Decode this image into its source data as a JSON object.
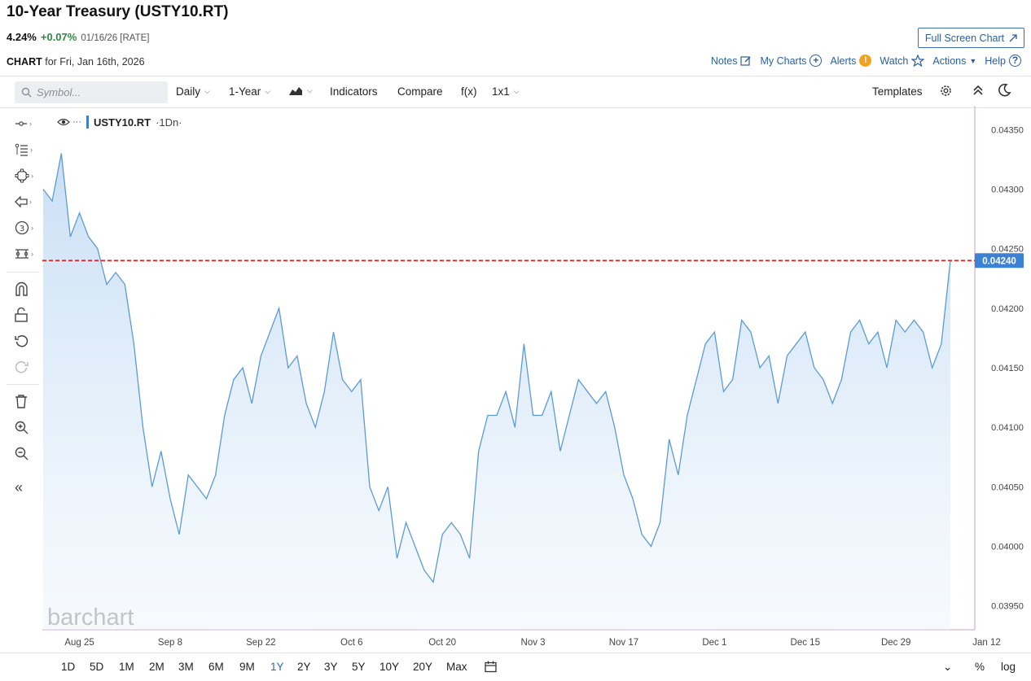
{
  "header": {
    "title": "10-Year Treasury (USTY10.RT)",
    "last": "4.24%",
    "change": "+0.07%",
    "meta": "01/16/26 [RATE]",
    "chart_label": "CHART",
    "chart_for": "for Fri, Jan 16th, 2026",
    "full_screen": "Full Screen Chart",
    "links": {
      "notes": "Notes",
      "my_charts": "My Charts",
      "alerts": "Alerts",
      "watch": "Watch",
      "actions": "Actions",
      "help": "Help"
    }
  },
  "toolbar": {
    "search_placeholder": "Symbol...",
    "interval": "Daily",
    "range": "1-Year",
    "indicators": "Indicators",
    "compare": "Compare",
    "fx": "f(x)",
    "layout": "1x1",
    "templates": "Templates"
  },
  "symbol_bar": {
    "symbol": "USTY10.RT",
    "period": "·1Dn·"
  },
  "price_label": "0.04240",
  "watermark": "barchart",
  "periods": [
    "1D",
    "5D",
    "1M",
    "2M",
    "3M",
    "6M",
    "9M",
    "1Y",
    "2Y",
    "3Y",
    "5Y",
    "10Y",
    "20Y",
    "Max"
  ],
  "active_period": "1Y",
  "bottom_right": {
    "percent": "%",
    "log": "log"
  },
  "colors": {
    "line": "#5b9bd5",
    "fill_top": "#cfe2f6",
    "price_line": "#d62728",
    "price_tag": "#3b82d6",
    "active": "#2b6cb8"
  },
  "chart_data": {
    "type": "area",
    "y_ticks": [
      "0.04350",
      "0.04300",
      "0.04250",
      "0.04200",
      "0.04150",
      "0.04100",
      "0.04050",
      "0.04000",
      "0.03950"
    ],
    "x_ticks": [
      "Aug 25",
      "Sep 8",
      "Sep 22",
      "Oct 6",
      "Oct 20",
      "Nov 3",
      "Nov 17",
      "Dec 1",
      "Dec 15",
      "Dec 29",
      "Jan 12"
    ],
    "ylim": [
      0.0393,
      0.0437
    ],
    "reference_line": 0.0424,
    "series": [
      {
        "values": [
          0.043,
          0.0429,
          0.0433,
          0.0426,
          0.0428,
          0.0426,
          0.0425,
          0.0422,
          0.0423,
          0.0422,
          0.0417,
          0.041,
          0.0405,
          0.0408,
          0.0404,
          0.0401,
          0.0406,
          0.0405,
          0.0404,
          0.0406,
          0.0411,
          0.0414,
          0.0415,
          0.0412,
          0.0416,
          0.0418,
          0.042,
          0.0415,
          0.0416,
          0.0412,
          0.041,
          0.0413,
          0.0418,
          0.0414,
          0.0413,
          0.0414,
          0.0405,
          0.0403,
          0.0405,
          0.0399,
          0.0402,
          0.04,
          0.0398,
          0.0397,
          0.0401,
          0.0402,
          0.0401,
          0.0399,
          0.0408,
          0.0411,
          0.0411,
          0.0413,
          0.041,
          0.0417,
          0.0411,
          0.0411,
          0.0413,
          0.0408,
          0.0411,
          0.0414,
          0.0413,
          0.0412,
          0.0413,
          0.041,
          0.0406,
          0.0404,
          0.0401,
          0.04,
          0.0402,
          0.0409,
          0.0406,
          0.0411,
          0.0414,
          0.0417,
          0.0418,
          0.0413,
          0.0414,
          0.0419,
          0.0418,
          0.0415,
          0.0416,
          0.0412,
          0.0416,
          0.0417,
          0.0418,
          0.0415,
          0.0414,
          0.0412,
          0.0414,
          0.0418,
          0.0419,
          0.0417,
          0.0418,
          0.0415,
          0.0419,
          0.0418,
          0.0419,
          0.0418,
          0.0415,
          0.0417,
          0.0424
        ]
      }
    ]
  }
}
